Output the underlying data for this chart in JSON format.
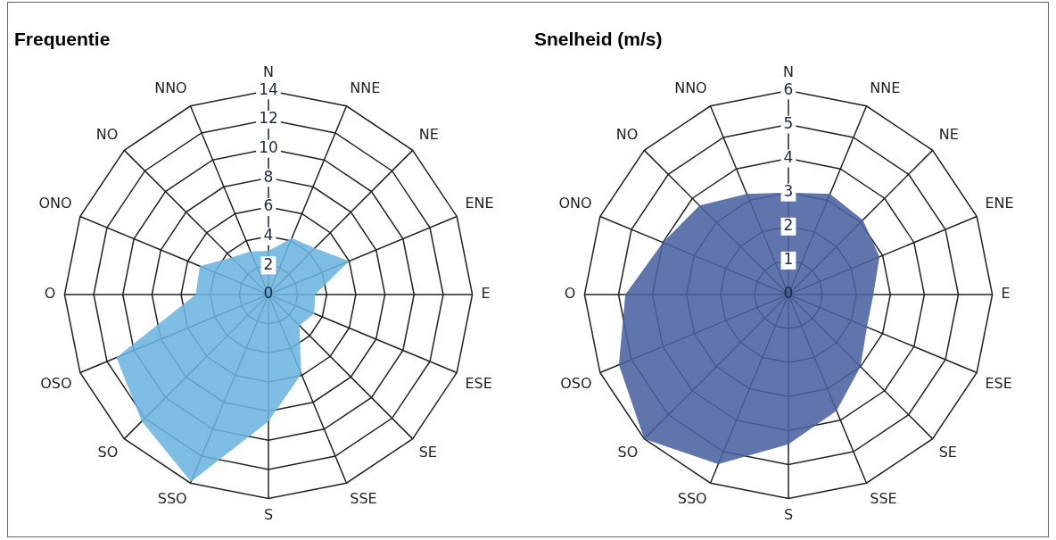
{
  "chart_data": [
    {
      "type": "radar",
      "title": "Frequentie",
      "categories": [
        "N",
        "NNE",
        "NE",
        "ENE",
        "E",
        "ESE",
        "SE",
        "SSE",
        "S",
        "SSO",
        "SO",
        "OSO",
        "O",
        "ONO",
        "NO",
        "NNO"
      ],
      "series": [
        {
          "color": "#6cb4e0",
          "values": [
            3.0,
            4.2,
            4.5,
            6.0,
            3.2,
            3.4,
            3.0,
            5.9,
            8.7,
            13.9,
            12.3,
            11.3,
            5.0,
            5.1,
            3.6,
            3.2
          ]
        }
      ],
      "ylim": [
        0,
        14
      ],
      "yticks": [
        0,
        2,
        4,
        6,
        8,
        10,
        12,
        14
      ],
      "grid": true
    },
    {
      "type": "radar",
      "title": "Snelheid (m/s)",
      "categories": [
        "N",
        "NNE",
        "NE",
        "ENE",
        "E",
        "ESE",
        "SE",
        "SSE",
        "S",
        "SSO",
        "SO",
        "OSO",
        "O",
        "ONO",
        "NO",
        "NNO"
      ],
      "series": [
        {
          "color": "#4a62a0",
          "values": [
            3.0,
            3.2,
            3.1,
            2.9,
            2.5,
            2.5,
            3.0,
            3.7,
            4.4,
            5.4,
            6.0,
            5.4,
            4.8,
            4.0,
            3.7,
            3.2
          ]
        }
      ],
      "ylim": [
        0,
        6
      ],
      "yticks": [
        0,
        1,
        2,
        3,
        4,
        5,
        6
      ],
      "grid": true
    }
  ]
}
